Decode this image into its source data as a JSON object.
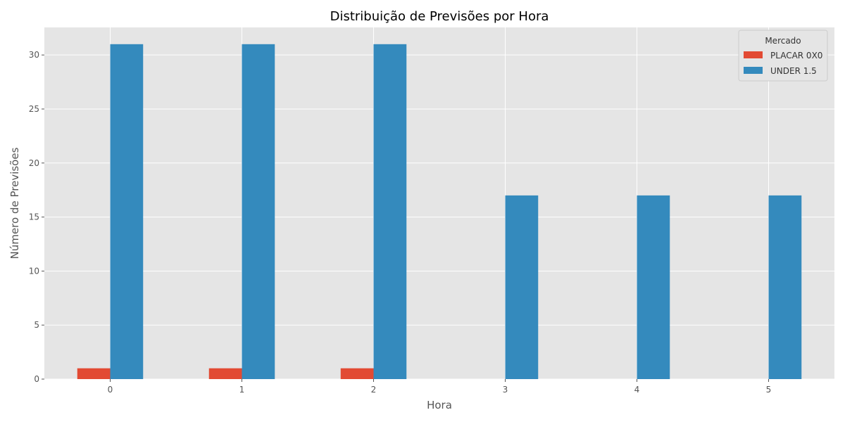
{
  "chart_data": {
    "type": "bar",
    "title": "Distribuição de Previsões por Hora",
    "xlabel": "Hora",
    "ylabel": "Número de Previsões",
    "categories": [
      "0",
      "1",
      "2",
      "3",
      "4",
      "5"
    ],
    "series": [
      {
        "name": "PLACAR 0X0",
        "values": [
          1,
          1,
          1,
          0,
          0,
          0
        ],
        "color": "#E24A33"
      },
      {
        "name": "UNDER 1.5",
        "values": [
          31,
          31,
          31,
          17,
          17,
          17
        ],
        "color": "#348ABD"
      }
    ],
    "ylim": [
      0,
      32.55
    ],
    "yticks": [
      0,
      5,
      10,
      15,
      20,
      25,
      30
    ],
    "grid": true,
    "legend": {
      "title": "Mercado",
      "placement": "top-right"
    },
    "colors": {
      "plot_background": "#E5E5E5",
      "grid": "#FFFFFF"
    }
  }
}
